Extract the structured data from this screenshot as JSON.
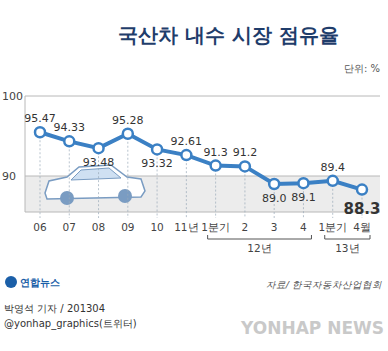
{
  "chart_data": {
    "type": "line",
    "title": "국산차 내수 시장 점유율",
    "unit_label": "단위: %",
    "categories": [
      "06",
      "07",
      "08",
      "09",
      "10",
      "11년",
      "1분기",
      "2",
      "3",
      "4",
      "1분기",
      "4월"
    ],
    "values": [
      95.47,
      94.33,
      93.48,
      95.28,
      93.32,
      92.61,
      91.3,
      91.2,
      89.0,
      89.1,
      89.4,
      88.3
    ],
    "value_labels": [
      "95.47",
      "94.33",
      "93.48",
      "95.28",
      "93.32",
      "92.61",
      "91.3",
      "91.2",
      "89.0",
      "89.1",
      "89.4",
      "88.3"
    ],
    "data_labels": true,
    "color": "#3b80c4",
    "marker": "circle",
    "ylim": [
      85.5,
      100
    ],
    "yticks": [
      90,
      100
    ],
    "grid": true,
    "annotations": [
      {
        "text": "12년",
        "from": 6,
        "to": 9
      },
      {
        "text": "13년",
        "from": 10,
        "to": 11
      }
    ],
    "source": "자료/ 한국자동차산업협회",
    "footer": [
      "연합뉴스",
      "박영석 기자 / 201304",
      "@yonhap_graphics(트위터)",
      "YONHAP NEWS"
    ]
  }
}
